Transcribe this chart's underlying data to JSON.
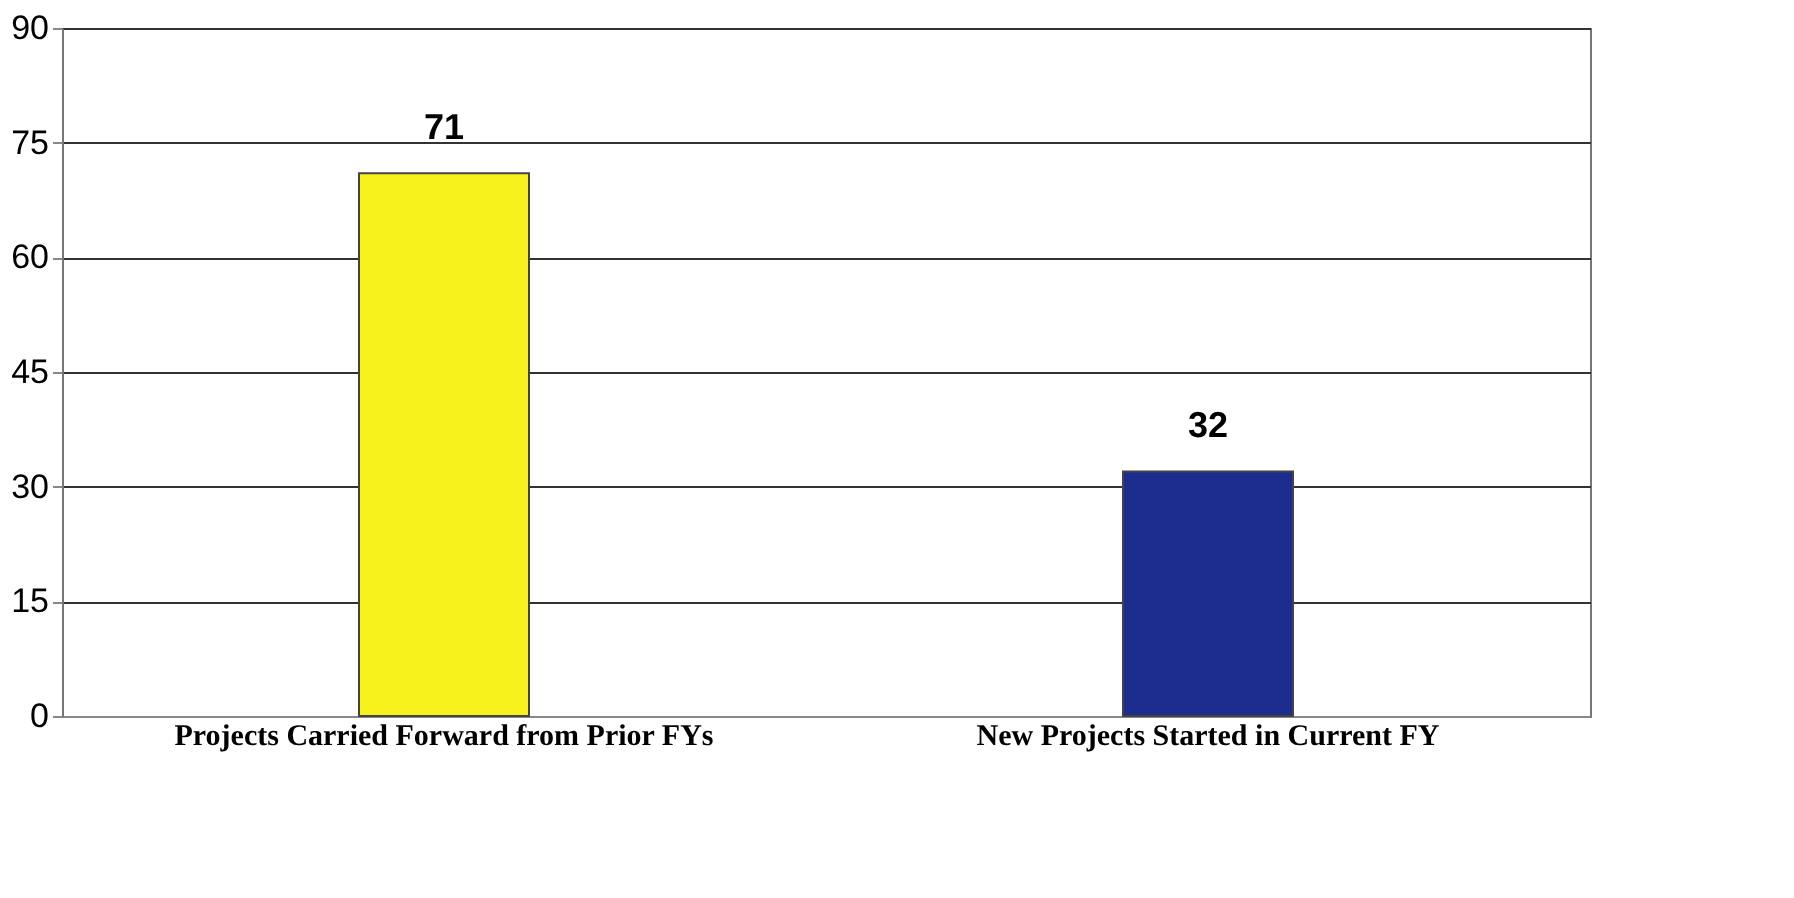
{
  "chart_data": {
    "type": "bar",
    "categories": [
      "Projects Carried Forward from Prior FYs",
      "New Projects Started in Current FY"
    ],
    "values": [
      71,
      32
    ],
    "colors": [
      "#f7f21c",
      "#1c2c8f"
    ],
    "ylim": [
      0,
      90
    ],
    "yticks": [
      0,
      15,
      30,
      45,
      60,
      75,
      90
    ],
    "grid": "y",
    "data_labels": true
  }
}
